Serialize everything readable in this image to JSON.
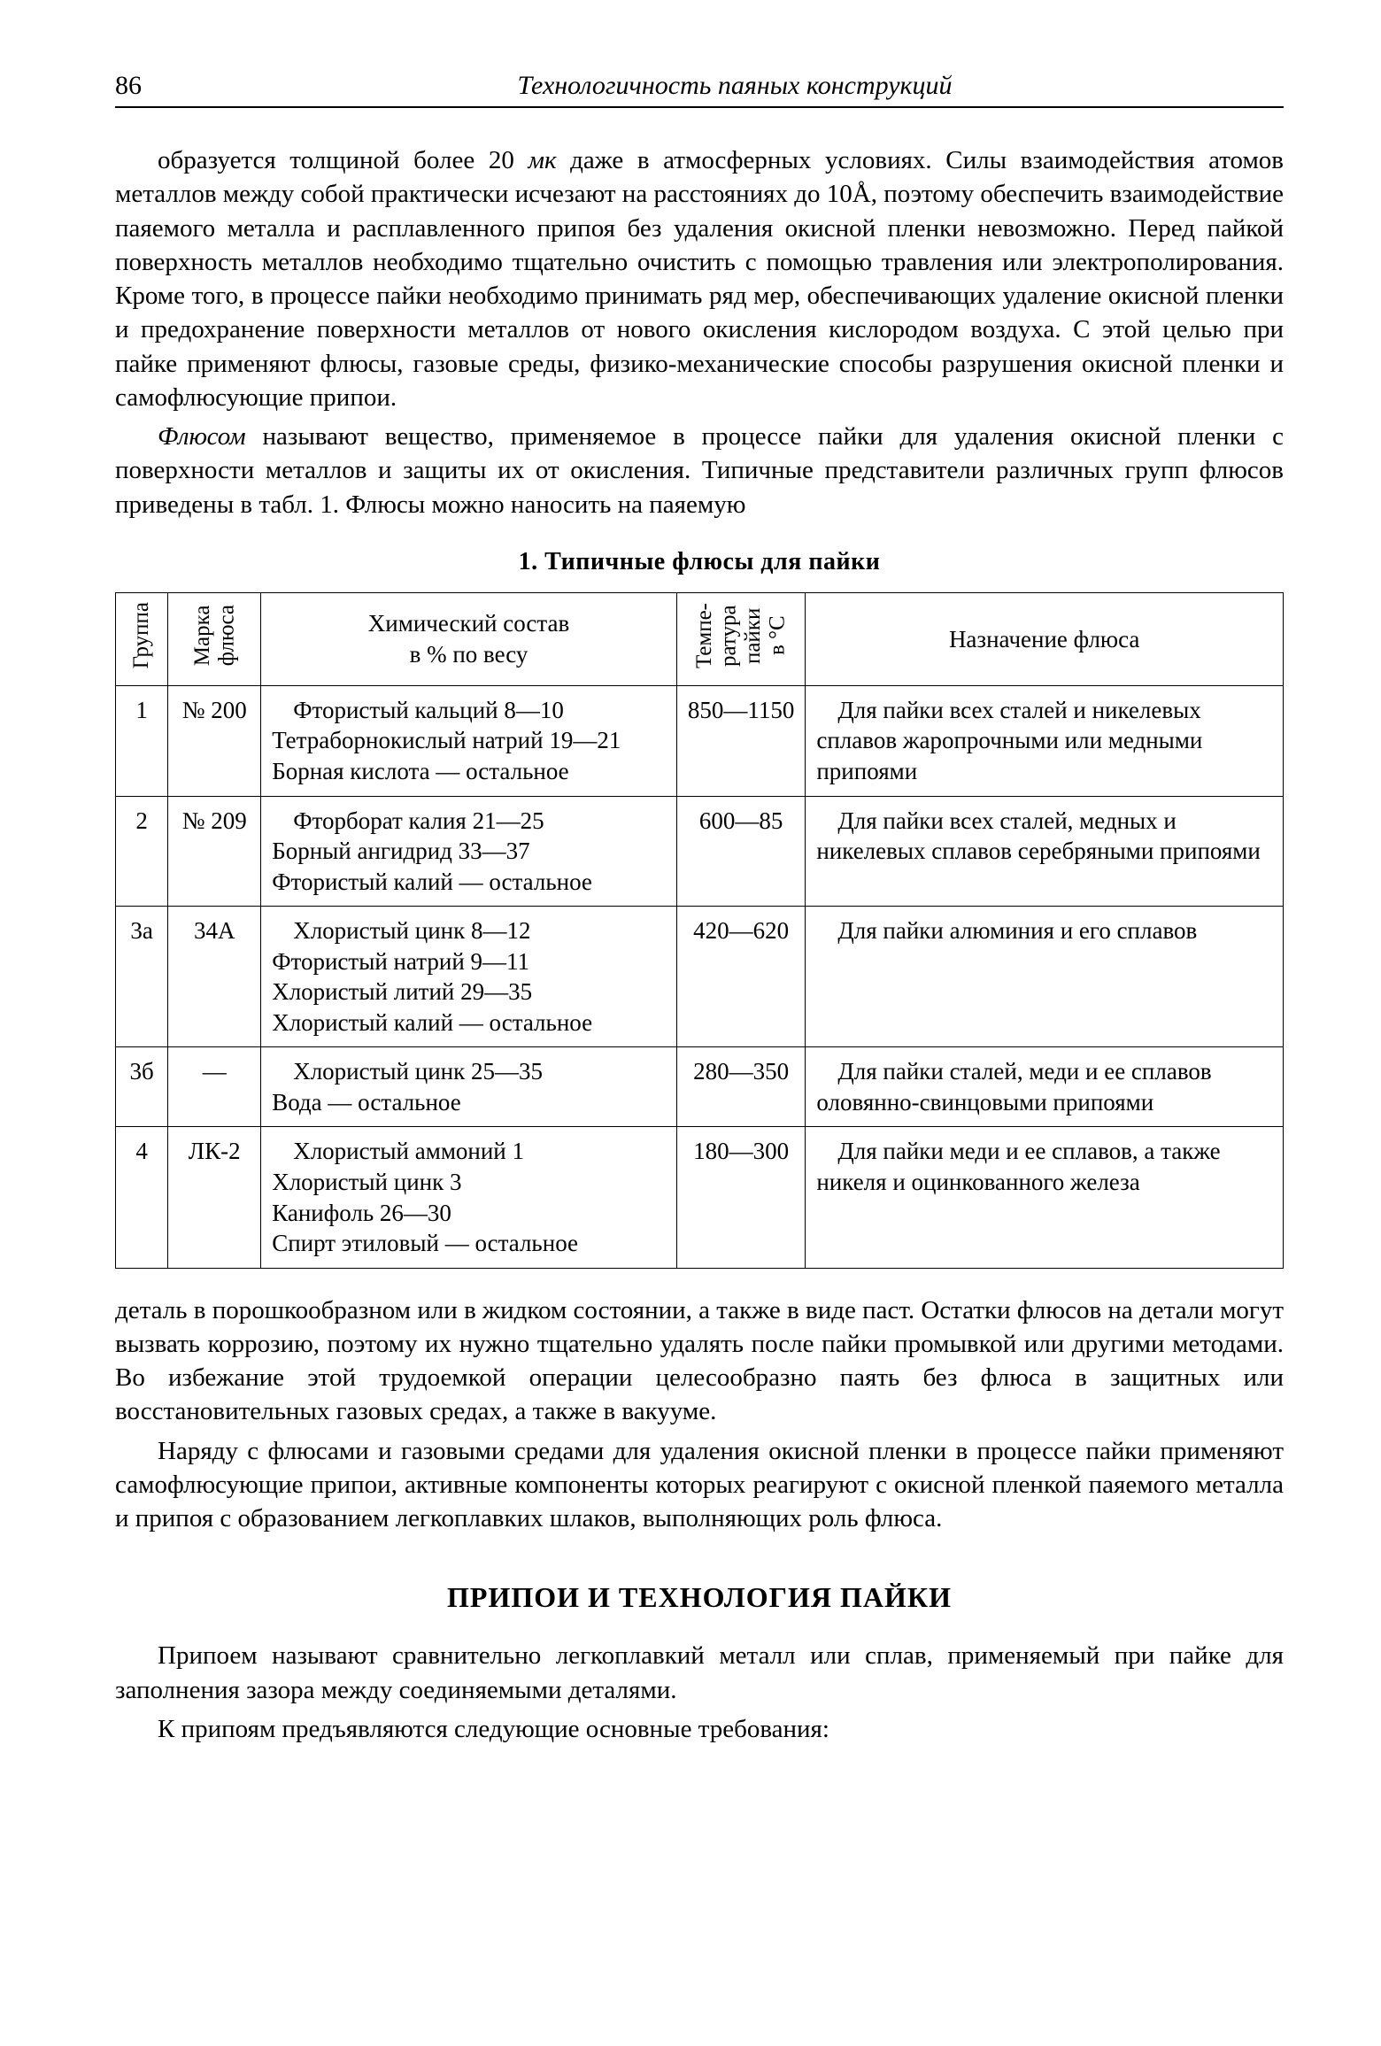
{
  "page_number": "86",
  "running_title": "Технологичность паяных конструкций",
  "paragraph1_html": "образуется толщиной более 20 <span class=\"italic\">мк</span> даже в атмосферных условиях. Силы взаимодействия атомов металлов между собой практически исчезают на расстояниях до 10Å, поэтому обеспечить взаимодействие паяемого металла и расплавленного припоя без удаления окисной пленки невозможно. Перед пайкой поверхность металлов необходимо тщательно очистить с помощью травления или электрополирования. Кроме того, в процессе пайки необходимо принимать ряд мер, обеспечивающих удаление окисной пленки и предохранение поверхности металлов от нового окисления кислородом воздуха. С этой целью при пайке применяют флюсы, газовые среды, физико-механические способы разрушения окисной пленки и самофлюсующие припои.",
  "paragraph2_html": "<span class=\"italic\">Флюсом</span> называют вещество, применяемое в процессе пайки для удаления окисной пленки с поверхности металлов и защиты их от окисления. Типичные представители различных групп флюсов приведены в табл. 1. Флюсы можно наносить на паяемую",
  "table_caption": "1. Типичные флюсы для пайки",
  "table": {
    "headers": {
      "group": "Группа",
      "brand": "Марка\nфлюса",
      "chem": "Химический состав\nв % по весу",
      "temp": "Темпе-\nратура\nпайки\nв °C",
      "purpose": "Назначение флюса"
    },
    "rows": [
      {
        "group": "1",
        "brand": "№ 200",
        "chem": "Фтористый кальций 8—10\nТетраборнокислый натрий 19—21\nБорная кислота — остальное",
        "temp": "850—1150",
        "purpose": "Для пайки всех сталей и никелевых сплавов жаропрочными или медными припоями"
      },
      {
        "group": "2",
        "brand": "№ 209",
        "chem": "Фторборат калия 21—25\nБорный ангидрид 33—37\nФтористый калий — остальное",
        "temp": "600—85",
        "purpose": "Для пайки всех сталей, медных и никелевых сплавов серебряными припоями"
      },
      {
        "group": "3а",
        "brand": "34А",
        "chem": "Хлористый цинк 8—12\nФтористый натрий 9—11\nХлористый литий 29—35\nХлористый калий — остальное",
        "temp": "420—620",
        "purpose": "Для пайки алюминия и его сплавов"
      },
      {
        "group": "3б",
        "brand": "—",
        "chem": "Хлористый цинк 25—35\nВода — остальное",
        "temp": "280—350",
        "purpose": "Для пайки сталей, меди и ее сплавов оловянно-свинцовыми припоями"
      },
      {
        "group": "4",
        "brand": "ЛК-2",
        "chem": "Хлористый аммоний 1\nХлористый цинк 3\nКанифоль 26—30\nСпирт этиловый — остальное",
        "temp": "180—300",
        "purpose": "Для пайки меди и ее сплавов, а также никеля и оцинкованного железа"
      }
    ]
  },
  "paragraph3": "деталь в порошкообразном или в жидком состоянии, а также в виде паст. Остатки флюсов на детали могут вызвать коррозию, поэтому их нужно тщательно удалять после пайки промывкой или другими методами. Во избежание этой трудоемкой операции целесообразно паять без флюса в защитных или восстановительных газовых средах, а также в вакууме.",
  "paragraph4": "Наряду с флюсами и газовыми средами для удаления окисной пленки в процессе пайки применяют самофлюсующие припои, активные компоненты которых реагируют с окисной пленкой паяемого металла и припоя с образованием легкоплавких шлаков, выполняющих роль флюса.",
  "section_heading": "ПРИПОИ И ТЕХНОЛОГИЯ ПАЙКИ",
  "paragraph5": "Припоем называют сравнительно легкоплавкий металл или сплав, применяемый при пайке для заполнения зазора между соединяемыми деталями.",
  "paragraph6": "К припоям предъявляются следующие основные требования:"
}
